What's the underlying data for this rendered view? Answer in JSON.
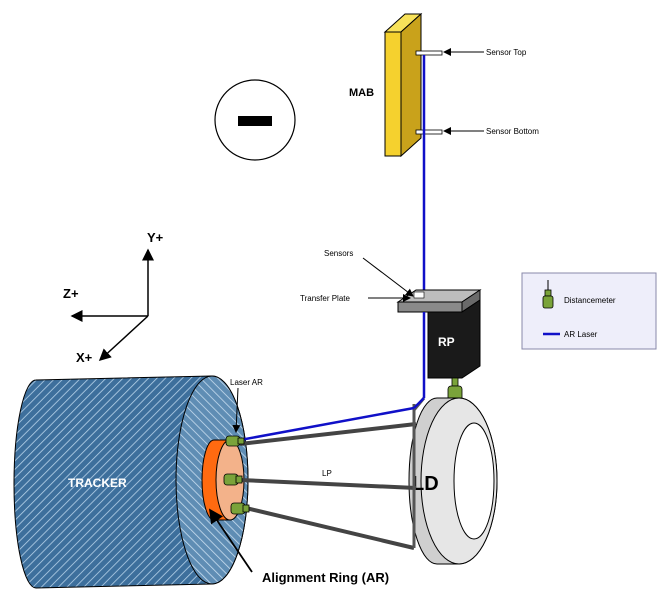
{
  "labels": {
    "mab": "MAB",
    "sensor_top": "Sensor Top",
    "sensor_bottom": "Sensor Bottom",
    "sensors": "Sensors",
    "transfer_plate": "Transfer Plate",
    "rp": "RP",
    "ld": "LD",
    "lp": "LP",
    "laser_ar": "Laser AR",
    "tracker": "TRACKER",
    "alignment_ring": "Alignment Ring (AR)",
    "axis_y": "Y+",
    "axis_z": "Z+",
    "axis_x": "X+"
  },
  "legend": {
    "distancemeter": "Distancemeter",
    "ar_laser": "AR Laser"
  },
  "colors": {
    "mab": "#f5d12e",
    "laser": "#1010c8",
    "alignment_ring": "#ff6a10",
    "alignment_ring_inner": "#f3b28a",
    "tracker": "#3d6f9c",
    "distancemeter": "#7aa33a",
    "rp": "#1a1a1a",
    "legend_bg": "#eeeefa"
  },
  "icons": [
    "minus-sign-icon",
    "distancemeter-icon"
  ]
}
